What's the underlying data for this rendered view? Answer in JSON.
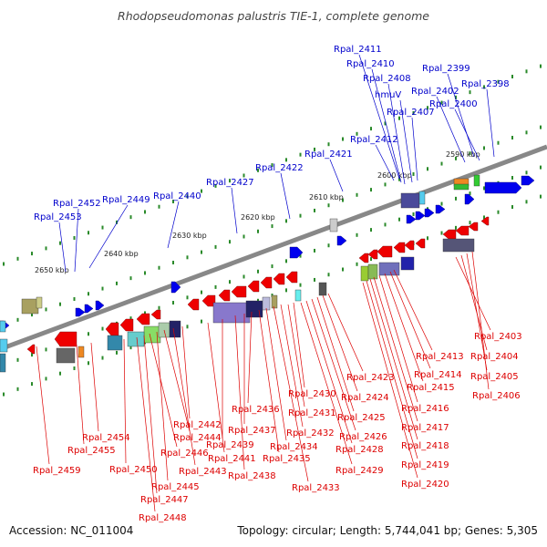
{
  "title": "Rhodopseudomonas palustris TIE-1, complete genome",
  "footer": {
    "accession": "Accession: NC_011004",
    "summary": "Topology: circular; Length: 5,744,041 bp; Genes: 5,305"
  },
  "colors": {
    "forward_label": "#0000cc",
    "reverse_label": "#dd0000",
    "forward_gene": "#0000ee",
    "reverse_gene": "#ee0000",
    "backbone": "#888888",
    "tick": "#2a8a2a",
    "ruler_text": "#222222"
  },
  "ruler": [
    {
      "label": "2590 kbp"
    },
    {
      "label": "2600 kbp"
    },
    {
      "label": "2610 kbp"
    },
    {
      "label": "2620 kbp"
    },
    {
      "label": "2630 kbp"
    },
    {
      "label": "2640 kbp"
    },
    {
      "label": "2650 kbp"
    }
  ],
  "forward_labels": [
    "Rpal_2411",
    "Rpal_2410",
    "Rpal_2408",
    "hmuV",
    "Rpal_2407",
    "Rpal_2399",
    "Rpal_2402",
    "Rpal_2400",
    "Rpal_2398",
    "Rpal_2412",
    "Rpal_2421",
    "Rpal_2422",
    "Rpal_2427",
    "Rpal_2440",
    "Rpal_2449",
    "Rpal_2452",
    "Rpal_2453"
  ],
  "reverse_labels": [
    "Rpal_2403",
    "Rpal_2404",
    "Rpal_2405",
    "Rpal_2406",
    "Rpal_2413",
    "Rpal_2414",
    "Rpal_2415",
    "Rpal_2416",
    "Rpal_2417",
    "Rpal_2418",
    "Rpal_2419",
    "Rpal_2420",
    "Rpal_2423",
    "Rpal_2424",
    "Rpal_2425",
    "Rpal_2426",
    "Rpal_2428",
    "Rpal_2429",
    "Rpal_2430",
    "Rpal_2431",
    "Rpal_2432",
    "Rpal_2433",
    "Rpal_2434",
    "Rpal_2435",
    "Rpal_2436",
    "Rpal_2437",
    "Rpal_2438",
    "Rpal_2439",
    "Rpal_2441",
    "Rpal_2442",
    "Rpal_2443",
    "Rpal_2444",
    "Rpal_2445",
    "Rpal_2446",
    "Rpal_2447",
    "Rpal_2448",
    "Rpal_2450",
    "Rpal_2454",
    "Rpal_2455",
    "Rpal_2459"
  ]
}
